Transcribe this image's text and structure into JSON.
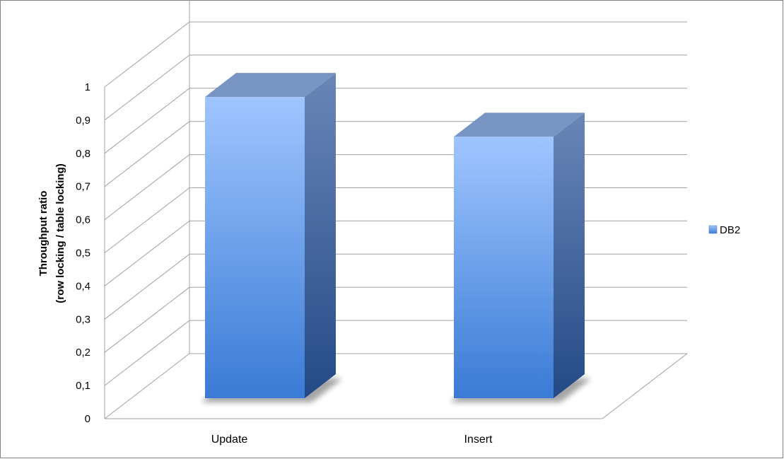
{
  "chart_data": {
    "type": "bar",
    "categories": [
      "Update",
      "Insert"
    ],
    "series": [
      {
        "name": "DB2",
        "values": [
          0.97,
          0.85
        ]
      }
    ],
    "title": "",
    "ylabel_lines": [
      "Throughput ratio",
      "(row locking / table locking)"
    ],
    "xlabel": "",
    "ylim": [
      0,
      1
    ],
    "yticks": [
      "0",
      "0,1",
      "0,2",
      "0,3",
      "0,4",
      "0,5",
      "0,6",
      "0,7",
      "0,8",
      "0,9",
      "1"
    ],
    "grid": true,
    "three_d": true,
    "legend_position": "right",
    "colors": {
      "bar_front_top": "#9fc5ff",
      "bar_front_bottom": "#3a7bd5",
      "bar_side_top": "#6a86b7",
      "bar_side_bottom": "#234a86",
      "bar_top": "#7894c2",
      "grid": "#a0a0a0",
      "legend_swatch": "#5b9bd5"
    }
  }
}
